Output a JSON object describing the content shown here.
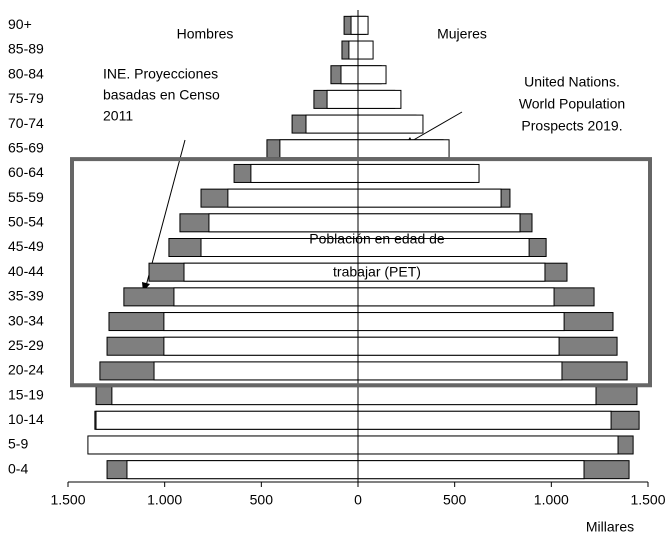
{
  "chart_data": {
    "type": "pyramid",
    "categories": [
      "0-4",
      "5-9",
      "10-14",
      "15-19",
      "20-24",
      "25-29",
      "30-34",
      "35-39",
      "40-44",
      "45-49",
      "50-54",
      "55-59",
      "60-64",
      "65-69",
      "70-74",
      "75-79",
      "80-84",
      "85-89",
      "90+"
    ],
    "left_label": "Hombres",
    "right_label": "Mujeres",
    "series": [
      {
        "color": "#7f7f7f",
        "values": [
          -1298,
          -1390,
          -1361,
          -1355,
          -1335,
          -1298,
          -1288,
          -1211,
          -1081,
          -978,
          -921,
          -812,
          -641,
          -471,
          -341,
          -228,
          -140,
          -83,
          -72
        ]
      },
      {
        "color": "#ffffff",
        "values": [
          -1195,
          -1397,
          -1355,
          -1273,
          -1055,
          -1004,
          -1004,
          -952,
          -900,
          -812,
          -771,
          -673,
          -554,
          -404,
          -269,
          -160,
          -88,
          -47,
          -36
        ]
      },
      {
        "color": "#7f7f7f",
        "values": [
          1402,
          1423,
          1454,
          1443,
          1392,
          1340,
          1319,
          1221,
          1081,
          973,
          900,
          786,
          600,
          440,
          300,
          190,
          120,
          60,
          40
        ]
      },
      {
        "color": "#ffffff",
        "values": [
          1169,
          1345,
          1309,
          1231,
          1055,
          1040,
          1066,
          1014,
          967,
          885,
          838,
          740,
          626,
          471,
          336,
          222,
          145,
          78,
          52
        ]
      }
    ],
    "xlim": [
      -1500,
      1500
    ],
    "xticks": [
      {
        "value": -1500,
        "label": "1.500"
      },
      {
        "value": -1000,
        "label": "1.000"
      },
      {
        "value": -500,
        "label": "500"
      },
      0,
      500,
      {
        "value": 1000,
        "label": "1.000"
      },
      {
        "value": 1500,
        "label": "1.500"
      }
    ],
    "xlabel": "Millares",
    "annotation_ine": [
      "INE. Proyecciones",
      "basadas en Censo",
      "2011"
    ],
    "annotation_un": [
      "United Nations.",
      "World Population",
      "Prospects 2019."
    ],
    "pet_label": [
      "Población en edad de",
      "trabajar (PET)"
    ]
  }
}
